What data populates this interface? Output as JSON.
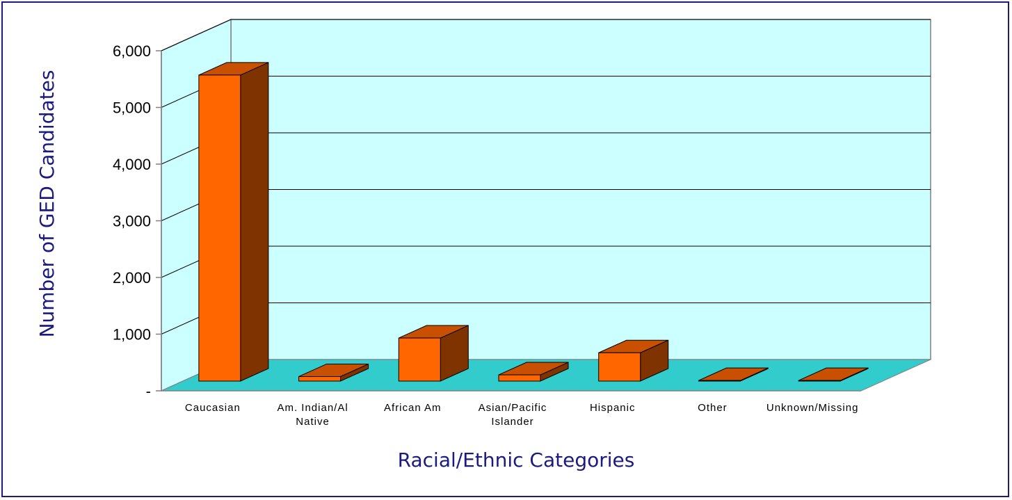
{
  "chart_data": {
    "type": "bar",
    "style": "3d-column",
    "title": "",
    "xlabel": "Racial/Ethnic Categories",
    "ylabel": "Number of GED Candidates",
    "categories": [
      [
        "Caucasian"
      ],
      [
        "Am. Indian/Al",
        "Native"
      ],
      [
        "African Am"
      ],
      [
        "Asian/Pacific",
        "Islander"
      ],
      [
        "Hispanic"
      ],
      [
        "Other"
      ],
      [
        "Unknown/Missing"
      ]
    ],
    "values": [
      5400,
      80,
      760,
      110,
      500,
      10,
      10
    ],
    "ylim": [
      0,
      6000
    ],
    "yticks": [
      0,
      1000,
      2000,
      3000,
      4000,
      5000,
      6000
    ],
    "ytick_labels": [
      "-",
      "1,000",
      "2,000",
      "3,000",
      "4,000",
      "5,000",
      "6,000"
    ],
    "grid": true,
    "legend": "none",
    "colors": {
      "bar_front": "#ff6600",
      "bar_side": "#7f3300",
      "bar_top": "#c85000",
      "back_wall": "#ccffff",
      "floor": "#33cccc",
      "axis_title": "#1a1a80",
      "frame": "#1a1a80"
    }
  }
}
